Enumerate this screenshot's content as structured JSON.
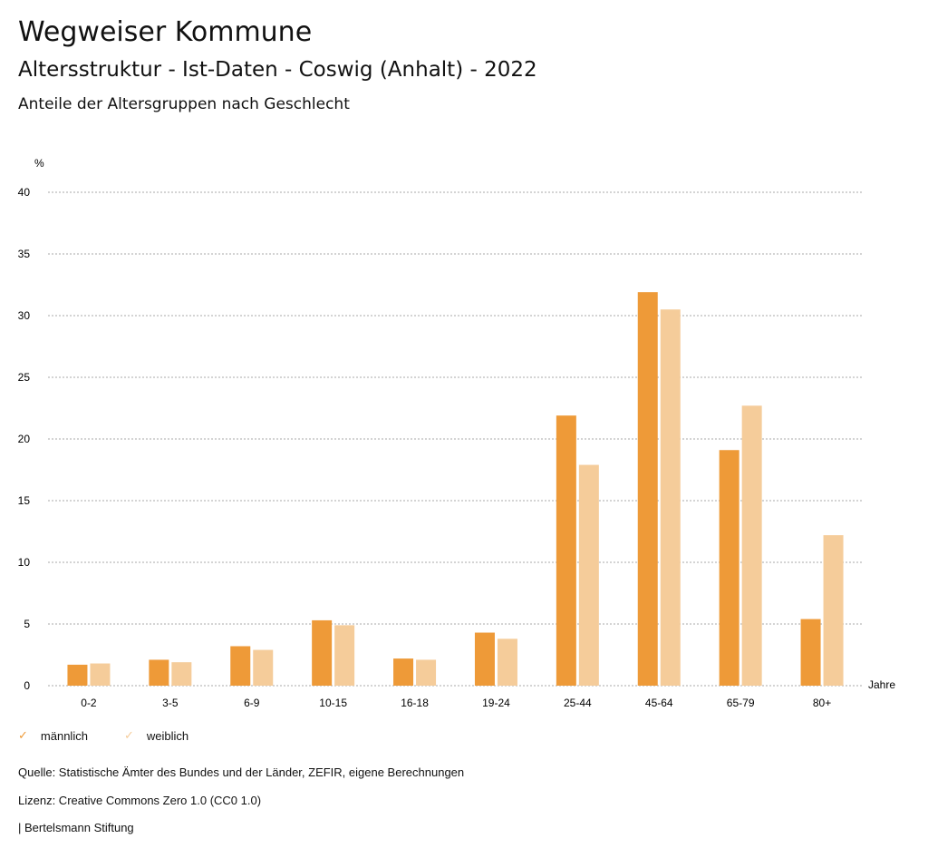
{
  "header": {
    "title": "Wegweiser Kommune",
    "subtitle": "Altersstruktur - Ist-Daten - Coswig (Anhalt) - 2022",
    "chart_title": "Anteile der Altersgruppen nach Geschlecht"
  },
  "chart_data": {
    "type": "bar",
    "title": "Anteile der Altersgruppen nach Geschlecht",
    "ylabel": "%",
    "xlabel": "Jahre",
    "ylim": [
      0,
      40
    ],
    "yticks": [
      0,
      5,
      10,
      15,
      20,
      25,
      30,
      35,
      40
    ],
    "grid": true,
    "legend_position": "bottom-left",
    "categories": [
      "0-2",
      "3-5",
      "6-9",
      "10-15",
      "16-18",
      "19-24",
      "25-44",
      "45-64",
      "65-79",
      "80+"
    ],
    "series": [
      {
        "name": "männlich",
        "color": "#EE9A38",
        "values": [
          1.7,
          2.1,
          3.2,
          5.3,
          2.2,
          4.3,
          21.9,
          31.9,
          19.1,
          5.4
        ]
      },
      {
        "name": "weiblich",
        "color": "#F5CC9A",
        "values": [
          1.8,
          1.9,
          2.9,
          4.9,
          2.1,
          3.8,
          17.9,
          30.5,
          22.7,
          12.2
        ]
      }
    ]
  },
  "footer": {
    "source": "Quelle: Statistische Ämter des Bundes und der Länder, ZEFIR, eigene Berechnungen",
    "license": "Lizenz: Creative Commons Zero 1.0 (CC0 1.0)",
    "brand": "| Bertelsmann Stiftung"
  }
}
